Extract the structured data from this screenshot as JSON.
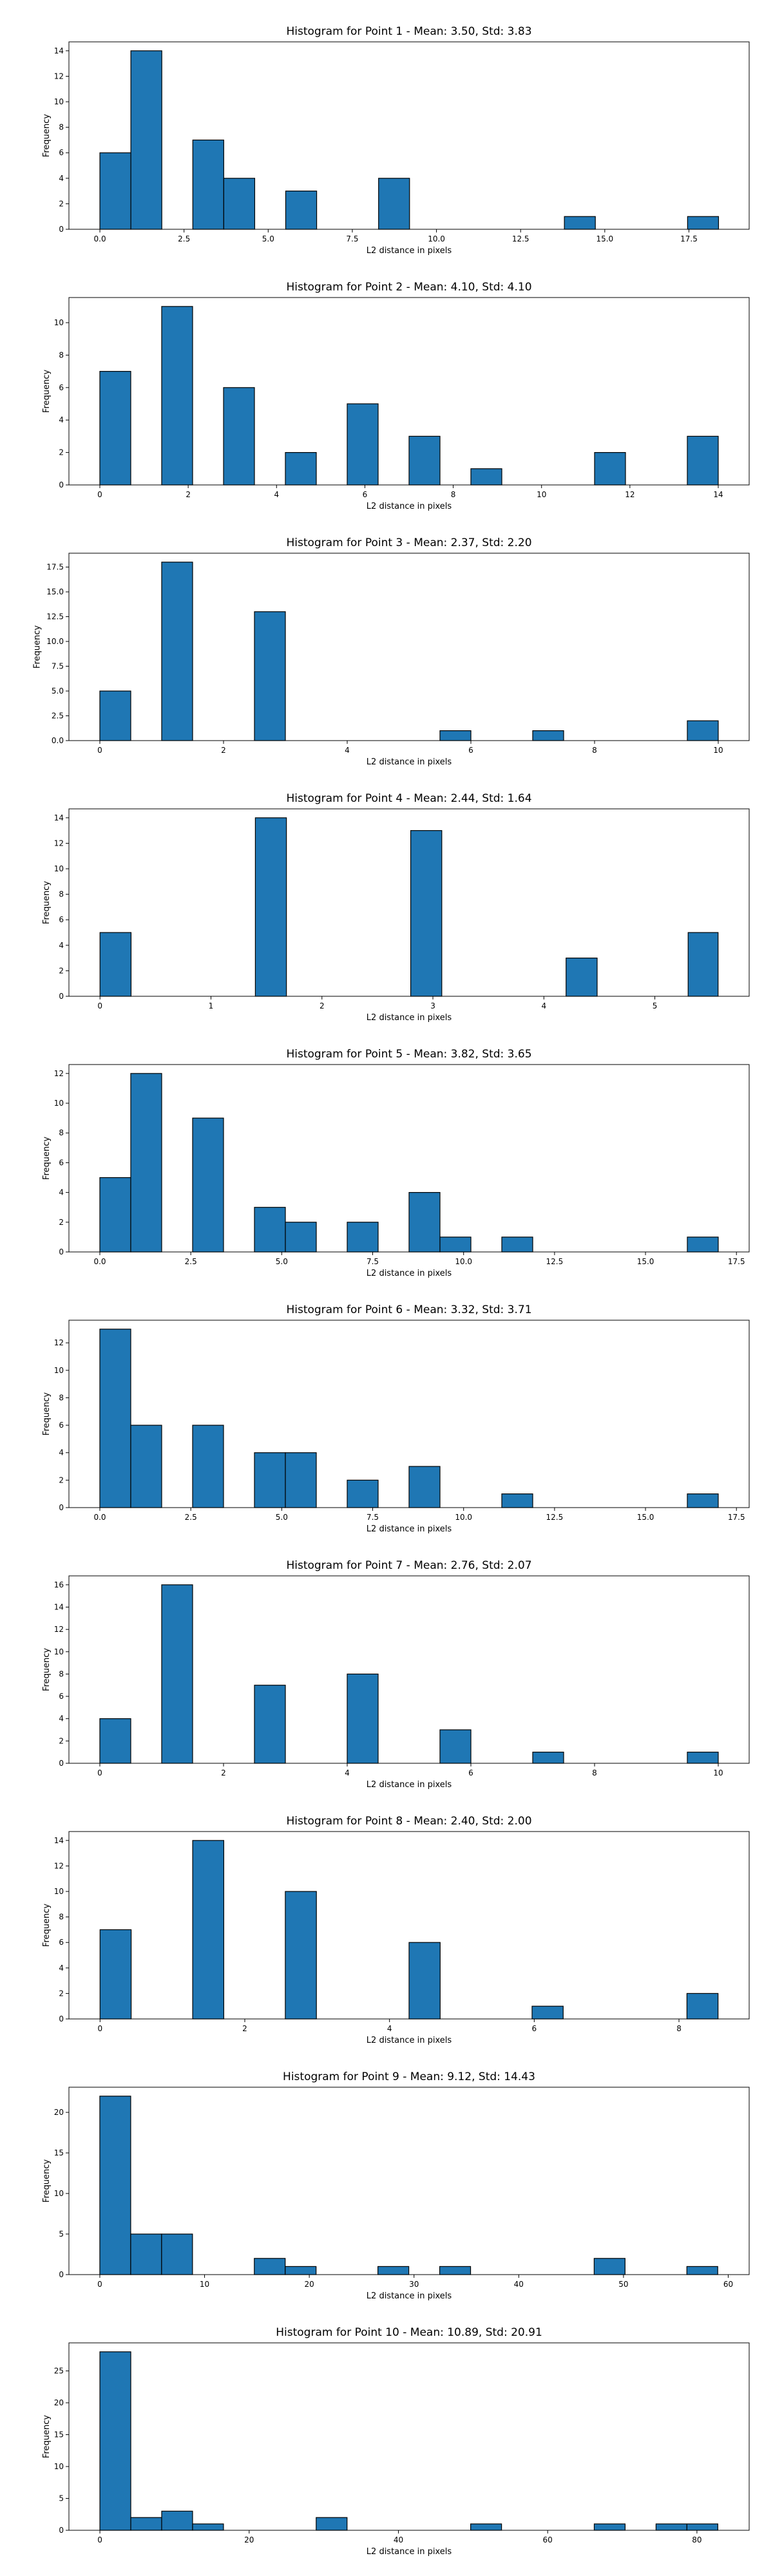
{
  "figure": {
    "bar_color": "#1f77b4",
    "edge_color": "#000000"
  },
  "chart_data": [
    {
      "type": "bar",
      "title": "Histogram for Point 1 - Mean: 3.50, Std: 3.83",
      "xlabel": "L2 distance in pixels",
      "ylabel": "Frequency",
      "xlim": [
        -0.92,
        19.29
      ],
      "ylim": [
        0,
        14.7
      ],
      "xticks": [
        0,
        2.5,
        5,
        7.5,
        10,
        12.5,
        15,
        17.5
      ],
      "xtick_labels": [
        "0.0",
        "2.5",
        "5.0",
        "7.5",
        "10.0",
        "12.5",
        "15.0",
        "17.5"
      ],
      "yticks": [
        0,
        2,
        4,
        6,
        8,
        10,
        12,
        14
      ],
      "ytick_labels": [
        "0",
        "2",
        "4",
        "6",
        "8",
        "10",
        "12",
        "14"
      ],
      "bars": [
        {
          "x0": 0.0,
          "x1": 0.92,
          "value": 6
        },
        {
          "x0": 0.92,
          "x1": 1.84,
          "value": 14
        },
        {
          "x0": 2.76,
          "x1": 3.68,
          "value": 7
        },
        {
          "x0": 3.68,
          "x1": 4.6,
          "value": 4
        },
        {
          "x0": 5.52,
          "x1": 6.44,
          "value": 3
        },
        {
          "x0": 8.28,
          "x1": 9.2,
          "value": 4
        },
        {
          "x0": 13.8,
          "x1": 14.72,
          "value": 1
        },
        {
          "x0": 17.46,
          "x1": 18.38,
          "value": 1
        }
      ]
    },
    {
      "type": "bar",
      "title": "Histogram for Point 2 - Mean: 4.10, Std: 4.10",
      "xlabel": "L2 distance in pixels",
      "ylabel": "Frequency",
      "xlim": [
        -0.7,
        14.7
      ],
      "ylim": [
        0,
        11.55
      ],
      "xticks": [
        0,
        2,
        4,
        6,
        8,
        10,
        12,
        14
      ],
      "xtick_labels": [
        "0",
        "2",
        "4",
        "6",
        "8",
        "10",
        "12",
        "14"
      ],
      "yticks": [
        0,
        2,
        4,
        6,
        8,
        10
      ],
      "ytick_labels": [
        "0",
        "2",
        "4",
        "6",
        "8",
        "10"
      ],
      "bars": [
        {
          "x0": 0.0,
          "x1": 0.7,
          "value": 7
        },
        {
          "x0": 1.4,
          "x1": 2.1,
          "value": 11
        },
        {
          "x0": 2.8,
          "x1": 3.5,
          "value": 6
        },
        {
          "x0": 4.2,
          "x1": 4.9,
          "value": 2
        },
        {
          "x0": 5.6,
          "x1": 6.3,
          "value": 5
        },
        {
          "x0": 7.0,
          "x1": 7.7,
          "value": 3
        },
        {
          "x0": 8.4,
          "x1": 9.1,
          "value": 1
        },
        {
          "x0": 11.2,
          "x1": 11.9,
          "value": 2
        },
        {
          "x0": 13.3,
          "x1": 14.0,
          "value": 3
        }
      ]
    },
    {
      "type": "bar",
      "title": "Histogram for Point 3 - Mean: 2.37, Std: 2.20",
      "xlabel": "L2 distance in pixels",
      "ylabel": "Frequency",
      "xlim": [
        -0.5,
        10.5
      ],
      "ylim": [
        0,
        18.9
      ],
      "xticks": [
        0,
        2,
        4,
        6,
        8,
        10
      ],
      "xtick_labels": [
        "0",
        "2",
        "4",
        "6",
        "8",
        "10"
      ],
      "yticks": [
        0,
        2.5,
        5,
        7.5,
        10,
        12.5,
        15,
        17.5
      ],
      "ytick_labels": [
        "0.0",
        "2.5",
        "5.0",
        "7.5",
        "10.0",
        "12.5",
        "15.0",
        "17.5"
      ],
      "bars": [
        {
          "x0": 0.0,
          "x1": 0.5,
          "value": 5
        },
        {
          "x0": 1.0,
          "x1": 1.5,
          "value": 18
        },
        {
          "x0": 2.5,
          "x1": 3.0,
          "value": 13
        },
        {
          "x0": 5.5,
          "x1": 6.0,
          "value": 1
        },
        {
          "x0": 7.0,
          "x1": 7.5,
          "value": 1
        },
        {
          "x0": 9.5,
          "x1": 10.0,
          "value": 2
        }
      ]
    },
    {
      "type": "bar",
      "title": "Histogram for Point 4 - Mean: 2.44, Std: 1.64",
      "xlabel": "L2 distance in pixels",
      "ylabel": "Frequency",
      "xlim": [
        -0.28,
        5.85
      ],
      "ylim": [
        0,
        14.7
      ],
      "xticks": [
        0,
        1,
        2,
        3,
        4,
        5
      ],
      "xtick_labels": [
        "0",
        "1",
        "2",
        "3",
        "4",
        "5"
      ],
      "yticks": [
        0,
        2,
        4,
        6,
        8,
        10,
        12,
        14
      ],
      "ytick_labels": [
        "0",
        "2",
        "4",
        "6",
        "8",
        "10",
        "12",
        "14"
      ],
      "bars": [
        {
          "x0": 0.0,
          "x1": 0.28,
          "value": 5
        },
        {
          "x0": 1.4,
          "x1": 1.68,
          "value": 14
        },
        {
          "x0": 2.8,
          "x1": 3.08,
          "value": 13
        },
        {
          "x0": 4.2,
          "x1": 4.48,
          "value": 3
        },
        {
          "x0": 5.3,
          "x1": 5.57,
          "value": 5
        }
      ]
    },
    {
      "type": "bar",
      "title": "Histogram for Point 5 - Mean: 3.82, Std: 3.65",
      "xlabel": "L2 distance in pixels",
      "ylabel": "Frequency",
      "xlim": [
        -0.85,
        17.85
      ],
      "ylim": [
        0,
        12.6
      ],
      "xticks": [
        0,
        2.5,
        5,
        7.5,
        10,
        12.5,
        15,
        17.5
      ],
      "xtick_labels": [
        "0.0",
        "2.5",
        "5.0",
        "7.5",
        "10.0",
        "12.5",
        "15.0",
        "17.5"
      ],
      "yticks": [
        0,
        2,
        4,
        6,
        8,
        10,
        12
      ],
      "ytick_labels": [
        "0",
        "2",
        "4",
        "6",
        "8",
        "10",
        "12"
      ],
      "bars": [
        {
          "x0": 0.0,
          "x1": 0.85,
          "value": 5
        },
        {
          "x0": 0.85,
          "x1": 1.7,
          "value": 12
        },
        {
          "x0": 2.55,
          "x1": 3.4,
          "value": 9
        },
        {
          "x0": 4.25,
          "x1": 5.1,
          "value": 3
        },
        {
          "x0": 5.1,
          "x1": 5.95,
          "value": 2
        },
        {
          "x0": 6.8,
          "x1": 7.65,
          "value": 2
        },
        {
          "x0": 8.5,
          "x1": 9.35,
          "value": 4
        },
        {
          "x0": 9.35,
          "x1": 10.2,
          "value": 1
        },
        {
          "x0": 11.05,
          "x1": 11.9,
          "value": 1
        },
        {
          "x0": 16.15,
          "x1": 17.0,
          "value": 1
        }
      ]
    },
    {
      "type": "bar",
      "title": "Histogram for Point 6 - Mean: 3.32, Std: 3.71",
      "xlabel": "L2 distance in pixels",
      "ylabel": "Frequency",
      "xlim": [
        -0.85,
        17.85
      ],
      "ylim": [
        0,
        13.65
      ],
      "xticks": [
        0,
        2.5,
        5,
        7.5,
        10,
        12.5,
        15,
        17.5
      ],
      "xtick_labels": [
        "0.0",
        "2.5",
        "5.0",
        "7.5",
        "10.0",
        "12.5",
        "15.0",
        "17.5"
      ],
      "yticks": [
        0,
        2,
        4,
        6,
        8,
        10,
        12
      ],
      "ytick_labels": [
        "0",
        "2",
        "4",
        "6",
        "8",
        "10",
        "12"
      ],
      "bars": [
        {
          "x0": 0.0,
          "x1": 0.85,
          "value": 13
        },
        {
          "x0": 0.85,
          "x1": 1.7,
          "value": 6
        },
        {
          "x0": 2.55,
          "x1": 3.4,
          "value": 6
        },
        {
          "x0": 4.25,
          "x1": 5.1,
          "value": 4
        },
        {
          "x0": 5.1,
          "x1": 5.95,
          "value": 4
        },
        {
          "x0": 6.8,
          "x1": 7.65,
          "value": 2
        },
        {
          "x0": 8.5,
          "x1": 9.35,
          "value": 3
        },
        {
          "x0": 11.05,
          "x1": 11.9,
          "value": 1
        },
        {
          "x0": 16.15,
          "x1": 17.0,
          "value": 1
        }
      ]
    },
    {
      "type": "bar",
      "title": "Histogram for Point 7 - Mean: 2.76, Std: 2.07",
      "xlabel": "L2 distance in pixels",
      "ylabel": "Frequency",
      "xlim": [
        -0.5,
        10.5
      ],
      "ylim": [
        0,
        16.8
      ],
      "xticks": [
        0,
        2,
        4,
        6,
        8,
        10
      ],
      "xtick_labels": [
        "0",
        "2",
        "4",
        "6",
        "8",
        "10"
      ],
      "yticks": [
        0,
        2,
        4,
        6,
        8,
        10,
        12,
        14,
        16
      ],
      "ytick_labels": [
        "0",
        "2",
        "4",
        "6",
        "8",
        "10",
        "12",
        "14",
        "16"
      ],
      "bars": [
        {
          "x0": 0.0,
          "x1": 0.5,
          "value": 4
        },
        {
          "x0": 1.0,
          "x1": 1.5,
          "value": 16
        },
        {
          "x0": 2.5,
          "x1": 3.0,
          "value": 7
        },
        {
          "x0": 4.0,
          "x1": 4.5,
          "value": 8
        },
        {
          "x0": 5.5,
          "x1": 6.0,
          "value": 3
        },
        {
          "x0": 7.0,
          "x1": 7.5,
          "value": 1
        },
        {
          "x0": 9.5,
          "x1": 10.0,
          "value": 1
        }
      ]
    },
    {
      "type": "bar",
      "title": "Histogram for Point 8 - Mean: 2.40, Std: 2.00",
      "xlabel": "L2 distance in pixels",
      "ylabel": "Frequency",
      "xlim": [
        -0.43,
        8.97
      ],
      "ylim": [
        0,
        14.7
      ],
      "xticks": [
        0,
        2,
        4,
        6,
        8
      ],
      "xtick_labels": [
        "0",
        "2",
        "4",
        "6",
        "8"
      ],
      "yticks": [
        0,
        2,
        4,
        6,
        8,
        10,
        12,
        14
      ],
      "ytick_labels": [
        "0",
        "2",
        "4",
        "6",
        "8",
        "10",
        "12",
        "14"
      ],
      "bars": [
        {
          "x0": 0.0,
          "x1": 0.43,
          "value": 7
        },
        {
          "x0": 1.28,
          "x1": 1.71,
          "value": 14
        },
        {
          "x0": 2.56,
          "x1": 2.99,
          "value": 10
        },
        {
          "x0": 4.27,
          "x1": 4.7,
          "value": 6
        },
        {
          "x0": 5.97,
          "x1": 6.4,
          "value": 1
        },
        {
          "x0": 8.11,
          "x1": 8.54,
          "value": 2
        }
      ]
    },
    {
      "type": "bar",
      "title": "Histogram for Point 9 - Mean: 9.12, Std: 14.43",
      "xlabel": "L2 distance in pixels",
      "ylabel": "Frequency",
      "xlim": [
        -2.95,
        62.0
      ],
      "ylim": [
        0,
        23.1
      ],
      "xticks": [
        0,
        10,
        20,
        30,
        40,
        50,
        60
      ],
      "xtick_labels": [
        "0",
        "10",
        "20",
        "30",
        "40",
        "50",
        "60"
      ],
      "yticks": [
        0,
        5,
        10,
        15,
        20
      ],
      "ytick_labels": [
        "0",
        "5",
        "10",
        "15",
        "20"
      ],
      "bars": [
        {
          "x0": 0.0,
          "x1": 2.95,
          "value": 22
        },
        {
          "x0": 2.95,
          "x1": 5.9,
          "value": 5
        },
        {
          "x0": 5.9,
          "x1": 8.85,
          "value": 5
        },
        {
          "x0": 14.75,
          "x1": 17.7,
          "value": 2
        },
        {
          "x0": 17.7,
          "x1": 20.65,
          "value": 1
        },
        {
          "x0": 26.55,
          "x1": 29.5,
          "value": 1
        },
        {
          "x0": 32.45,
          "x1": 35.4,
          "value": 1
        },
        {
          "x0": 47.2,
          "x1": 50.15,
          "value": 2
        },
        {
          "x0": 56.05,
          "x1": 59.0,
          "value": 1
        }
      ]
    },
    {
      "type": "bar",
      "title": "Histogram for Point 10 - Mean: 10.89, Std: 20.91",
      "xlabel": "L2 distance in pixels",
      "ylabel": "Frequency",
      "xlim": [
        -4.15,
        87.0
      ],
      "ylim": [
        0,
        29.4
      ],
      "xticks": [
        0,
        20,
        40,
        60,
        80
      ],
      "xtick_labels": [
        "0",
        "20",
        "40",
        "60",
        "80"
      ],
      "yticks": [
        0,
        5,
        10,
        15,
        20,
        25
      ],
      "ytick_labels": [
        "0",
        "5",
        "10",
        "15",
        "20",
        "25"
      ],
      "bars": [
        {
          "x0": 0.0,
          "x1": 4.14,
          "value": 28
        },
        {
          "x0": 4.14,
          "x1": 8.28,
          "value": 2
        },
        {
          "x0": 8.28,
          "x1": 12.42,
          "value": 3
        },
        {
          "x0": 12.42,
          "x1": 16.56,
          "value": 1
        },
        {
          "x0": 28.98,
          "x1": 33.12,
          "value": 2
        },
        {
          "x0": 49.68,
          "x1": 53.82,
          "value": 1
        },
        {
          "x0": 66.24,
          "x1": 70.38,
          "value": 1
        },
        {
          "x0": 74.52,
          "x1": 78.66,
          "value": 1
        },
        {
          "x0": 78.66,
          "x1": 82.8,
          "value": 1
        }
      ]
    }
  ]
}
